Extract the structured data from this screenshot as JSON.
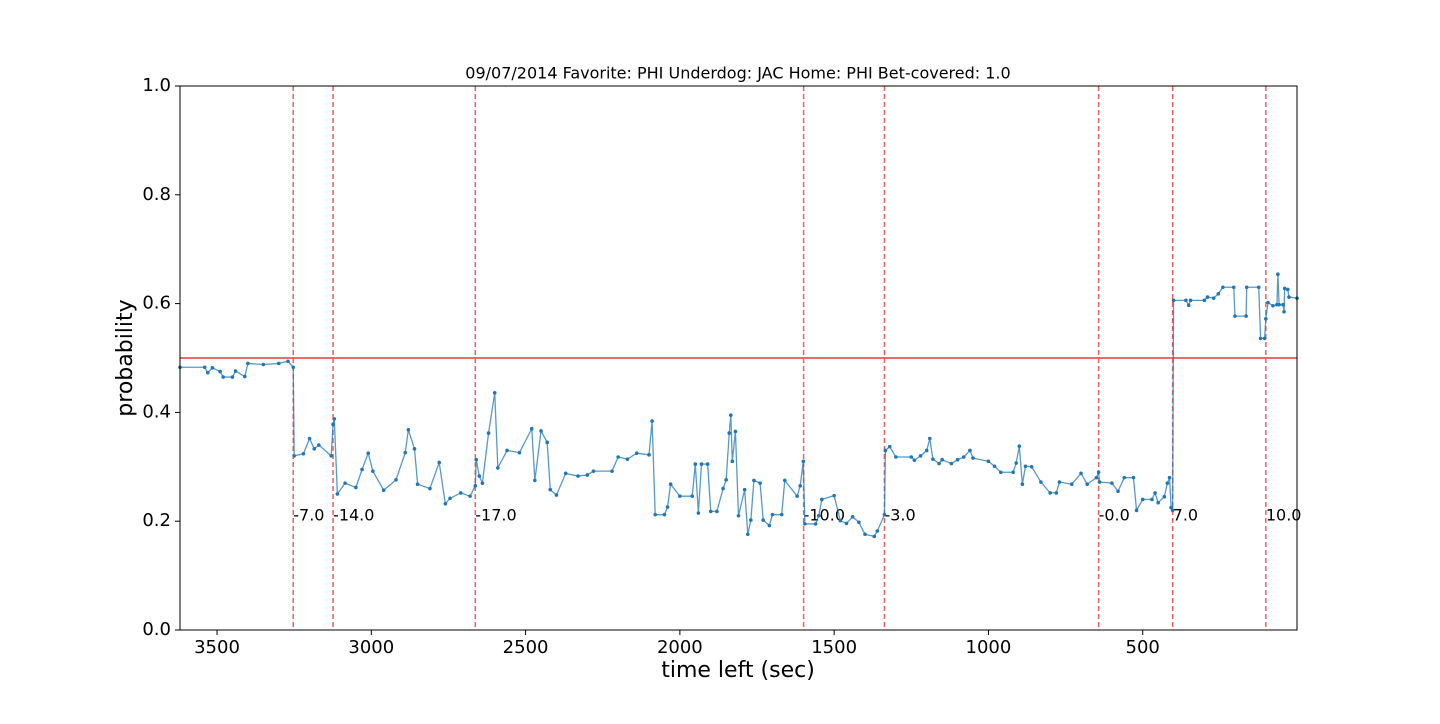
{
  "chart_data": {
    "type": "line",
    "title": "09/07/2014 Favorite: PHI Underdog: JAC Home: PHI Bet-covered: 1.0",
    "xlabel": "time left (sec)",
    "ylabel": "probability",
    "xlim": [
      3620,
      0
    ],
    "ylim": [
      0,
      1
    ],
    "xticks": [
      3500,
      3000,
      2500,
      2000,
      1500,
      1000,
      500
    ],
    "yticks": [
      {
        "value": 0,
        "label": "0.0"
      },
      {
        "value": 0.2,
        "label": "0.2"
      },
      {
        "value": 0.4,
        "label": "0.4"
      },
      {
        "value": 0.6,
        "label": "0.6"
      },
      {
        "value": 0.8,
        "label": "0.8"
      },
      {
        "value": 1,
        "label": "1.0"
      }
    ],
    "hline": {
      "value": 0.5,
      "color": "#e03c3c"
    },
    "vline_color": "#f06060",
    "vlines": [
      {
        "x": 3253,
        "label": "-7.0"
      },
      {
        "x": 3124,
        "label": "-14.0"
      },
      {
        "x": 2663,
        "label": "-17.0"
      },
      {
        "x": 1599,
        "label": "-10.0"
      },
      {
        "x": 1337,
        "label": "-3.0"
      },
      {
        "x": 643,
        "label": "-0.0"
      },
      {
        "x": 403,
        "label": "7.0"
      },
      {
        "x": 101,
        "label": "10.0"
      }
    ],
    "x": [
      3620,
      3540,
      3530,
      3515,
      3490,
      3480,
      3450,
      3440,
      3410,
      3400,
      3350,
      3300,
      3270,
      3253,
      3250,
      3220,
      3200,
      3185,
      3170,
      3130,
      3124,
      3120,
      3110,
      3085,
      3050,
      3030,
      3010,
      2995,
      2960,
      2920,
      2890,
      2880,
      2860,
      2850,
      2810,
      2780,
      2760,
      2745,
      2710,
      2680,
      2663,
      2660,
      2650,
      2640,
      2620,
      2600,
      2590,
      2560,
      2520,
      2480,
      2470,
      2450,
      2430,
      2420,
      2400,
      2370,
      2330,
      2300,
      2280,
      2220,
      2200,
      2170,
      2140,
      2100,
      2090,
      2080,
      2050,
      2040,
      2030,
      2000,
      1960,
      1950,
      1940,
      1930,
      1910,
      1900,
      1880,
      1860,
      1850,
      1840,
      1835,
      1830,
      1820,
      1810,
      1790,
      1780,
      1770,
      1760,
      1740,
      1730,
      1710,
      1700,
      1670,
      1660,
      1620,
      1610,
      1600,
      1595,
      1560,
      1550,
      1540,
      1500,
      1480,
      1460,
      1440,
      1420,
      1400,
      1370,
      1360,
      1337,
      1334,
      1320,
      1300,
      1250,
      1240,
      1220,
      1200,
      1190,
      1180,
      1160,
      1150,
      1120,
      1100,
      1080,
      1060,
      1050,
      1000,
      980,
      960,
      920,
      910,
      900,
      890,
      880,
      860,
      830,
      800,
      780,
      770,
      730,
      700,
      680,
      650,
      643,
      640,
      600,
      580,
      560,
      530,
      520,
      500,
      470,
      460,
      450,
      430,
      420,
      413,
      408,
      403,
      400,
      360,
      351,
      345,
      300,
      290,
      270,
      255,
      240,
      205,
      201,
      165,
      163,
      124,
      118,
      105,
      101,
      94,
      78,
      65,
      62,
      58,
      45,
      42,
      40,
      30,
      26,
      0
    ],
    "series": [
      {
        "name": "probability",
        "color": "#1f77b4",
        "values": [
          0.483,
          0.483,
          0.473,
          0.482,
          0.475,
          0.465,
          0.465,
          0.476,
          0.466,
          0.49,
          0.488,
          0.49,
          0.494,
          0.483,
          0.32,
          0.324,
          0.352,
          0.333,
          0.34,
          0.32,
          0.378,
          0.388,
          0.25,
          0.27,
          0.262,
          0.295,
          0.325,
          0.292,
          0.257,
          0.276,
          0.326,
          0.368,
          0.333,
          0.268,
          0.26,
          0.308,
          0.232,
          0.242,
          0.252,
          0.246,
          0.265,
          0.313,
          0.283,
          0.27,
          0.362,
          0.436,
          0.298,
          0.33,
          0.326,
          0.37,
          0.275,
          0.366,
          0.345,
          0.258,
          0.248,
          0.288,
          0.283,
          0.285,
          0.292,
          0.292,
          0.318,
          0.314,
          0.325,
          0.322,
          0.384,
          0.212,
          0.212,
          0.226,
          0.268,
          0.246,
          0.246,
          0.305,
          0.215,
          0.305,
          0.305,
          0.218,
          0.218,
          0.26,
          0.276,
          0.362,
          0.395,
          0.31,
          0.365,
          0.21,
          0.258,
          0.176,
          0.202,
          0.275,
          0.27,
          0.202,
          0.192,
          0.212,
          0.212,
          0.275,
          0.246,
          0.265,
          0.31,
          0.195,
          0.195,
          0.21,
          0.24,
          0.247,
          0.201,
          0.196,
          0.208,
          0.198,
          0.176,
          0.172,
          0.182,
          0.212,
          0.33,
          0.337,
          0.318,
          0.318,
          0.312,
          0.32,
          0.33,
          0.352,
          0.314,
          0.306,
          0.313,
          0.306,
          0.313,
          0.318,
          0.33,
          0.316,
          0.31,
          0.301,
          0.29,
          0.29,
          0.307,
          0.338,
          0.268,
          0.301,
          0.3,
          0.272,
          0.252,
          0.252,
          0.272,
          0.268,
          0.288,
          0.268,
          0.28,
          0.29,
          0.272,
          0.27,
          0.255,
          0.28,
          0.28,
          0.22,
          0.24,
          0.24,
          0.252,
          0.234,
          0.245,
          0.27,
          0.28,
          0.225,
          0.22,
          0.606,
          0.606,
          0.597,
          0.606,
          0.606,
          0.612,
          0.61,
          0.618,
          0.63,
          0.63,
          0.577,
          0.577,
          0.63,
          0.63,
          0.536,
          0.536,
          0.572,
          0.602,
          0.596,
          0.598,
          0.654,
          0.598,
          0.598,
          0.585,
          0.628,
          0.626,
          0.612,
          0.61
        ]
      }
    ]
  }
}
